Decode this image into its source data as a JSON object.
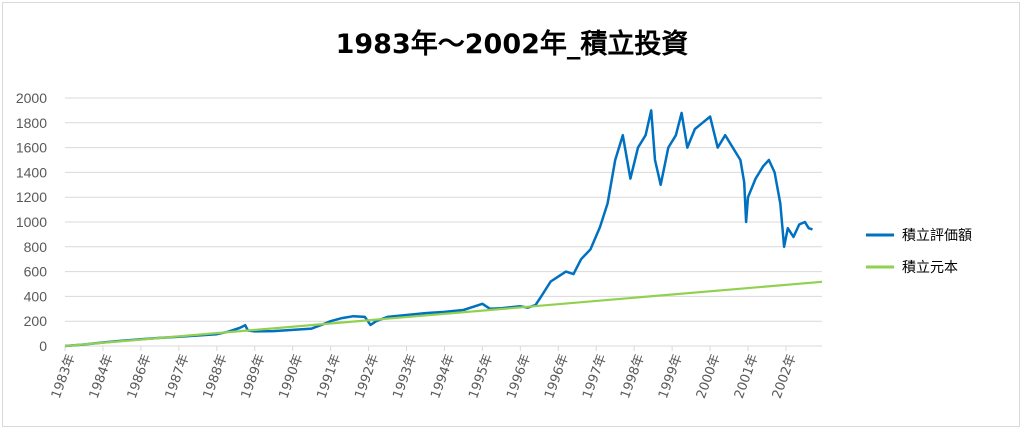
{
  "chart_data": {
    "type": "line",
    "title": "1983年～2002年_積立投資",
    "xlabel": "",
    "ylabel": "",
    "ylim": [
      0,
      2000
    ],
    "yticks": [
      0,
      200,
      400,
      600,
      800,
      1000,
      1200,
      1400,
      1600,
      1800,
      2000
    ],
    "xlim": [
      1983.0,
      2002.95
    ],
    "grid": true,
    "legend_position": "right",
    "x_tick_labels": [
      {
        "year": 1983,
        "label": "1983年"
      },
      {
        "year": 1984,
        "label": "1984年"
      },
      {
        "year": 1985,
        "label": "1986年"
      },
      {
        "year": 1986,
        "label": "1987年"
      },
      {
        "year": 1987,
        "label": "1988年"
      },
      {
        "year": 1988,
        "label": "1989年"
      },
      {
        "year": 1989,
        "label": "1990年"
      },
      {
        "year": 1990,
        "label": "1991年"
      },
      {
        "year": 1991,
        "label": "1992年"
      },
      {
        "year": 1992,
        "label": "1993年"
      },
      {
        "year": 1993,
        "label": "1994年"
      },
      {
        "year": 1994,
        "label": "1995年"
      },
      {
        "year": 1995,
        "label": "1996年"
      },
      {
        "year": 1996,
        "label": "1996年"
      },
      {
        "year": 1997,
        "label": "1997年"
      },
      {
        "year": 1998,
        "label": "1998年"
      },
      {
        "year": 1999,
        "label": "1999年"
      },
      {
        "year": 2000,
        "label": "2000年"
      },
      {
        "year": 2001,
        "label": "2001年"
      },
      {
        "year": 2002,
        "label": "2002年"
      }
    ],
    "series": [
      {
        "name": "積立評価額",
        "color": "#0070C0",
        "points": [
          [
            1983.0,
            0
          ],
          [
            1983.5,
            12
          ],
          [
            1984.0,
            28
          ],
          [
            1984.5,
            42
          ],
          [
            1985.0,
            55
          ],
          [
            1985.5,
            65
          ],
          [
            1986.0,
            75
          ],
          [
            1986.5,
            85
          ],
          [
            1987.0,
            95
          ],
          [
            1987.3,
            115
          ],
          [
            1987.6,
            145
          ],
          [
            1987.75,
            168
          ],
          [
            1987.82,
            125
          ],
          [
            1988.0,
            118
          ],
          [
            1988.5,
            120
          ],
          [
            1989.0,
            130
          ],
          [
            1989.5,
            140
          ],
          [
            1989.8,
            175
          ],
          [
            1990.0,
            200
          ],
          [
            1990.3,
            225
          ],
          [
            1990.6,
            240
          ],
          [
            1990.9,
            235
          ],
          [
            1991.05,
            170
          ],
          [
            1991.2,
            200
          ],
          [
            1991.5,
            235
          ],
          [
            1992.0,
            250
          ],
          [
            1992.5,
            265
          ],
          [
            1993.0,
            275
          ],
          [
            1993.5,
            290
          ],
          [
            1993.8,
            320
          ],
          [
            1994.0,
            340
          ],
          [
            1994.2,
            300
          ],
          [
            1994.5,
            305
          ],
          [
            1995.0,
            320
          ],
          [
            1995.2,
            310
          ],
          [
            1995.4,
            330
          ],
          [
            1995.55,
            400
          ],
          [
            1995.8,
            520
          ],
          [
            1996.0,
            560
          ],
          [
            1996.2,
            600
          ],
          [
            1996.4,
            580
          ],
          [
            1996.6,
            700
          ],
          [
            1996.85,
            780
          ],
          [
            1997.1,
            960
          ],
          [
            1997.3,
            1150
          ],
          [
            1997.5,
            1500
          ],
          [
            1997.7,
            1700
          ],
          [
            1997.9,
            1350
          ],
          [
            1998.1,
            1600
          ],
          [
            1998.3,
            1700
          ],
          [
            1998.45,
            1900
          ],
          [
            1998.55,
            1500
          ],
          [
            1998.7,
            1300
          ],
          [
            1998.9,
            1600
          ],
          [
            1999.1,
            1700
          ],
          [
            1999.25,
            1880
          ],
          [
            1999.4,
            1600
          ],
          [
            1999.6,
            1750
          ],
          [
            1999.8,
            1800
          ],
          [
            2000.0,
            1850
          ],
          [
            2000.2,
            1600
          ],
          [
            2000.4,
            1700
          ],
          [
            2000.6,
            1600
          ],
          [
            2000.8,
            1500
          ],
          [
            2000.9,
            1320
          ],
          [
            2000.95,
            1000
          ],
          [
            2001.0,
            1200
          ],
          [
            2001.2,
            1350
          ],
          [
            2001.4,
            1450
          ],
          [
            2001.55,
            1500
          ],
          [
            2001.7,
            1400
          ],
          [
            2001.85,
            1150
          ],
          [
            2001.95,
            800
          ],
          [
            2002.05,
            950
          ],
          [
            2002.2,
            880
          ],
          [
            2002.35,
            980
          ],
          [
            2002.5,
            1000
          ],
          [
            2002.6,
            950
          ],
          [
            2002.7,
            940
          ]
        ]
      },
      {
        "name": "積立元本",
        "color": "#92D050",
        "points": [
          [
            1983.0,
            0
          ],
          [
            2002.95,
            518
          ]
        ]
      }
    ]
  }
}
